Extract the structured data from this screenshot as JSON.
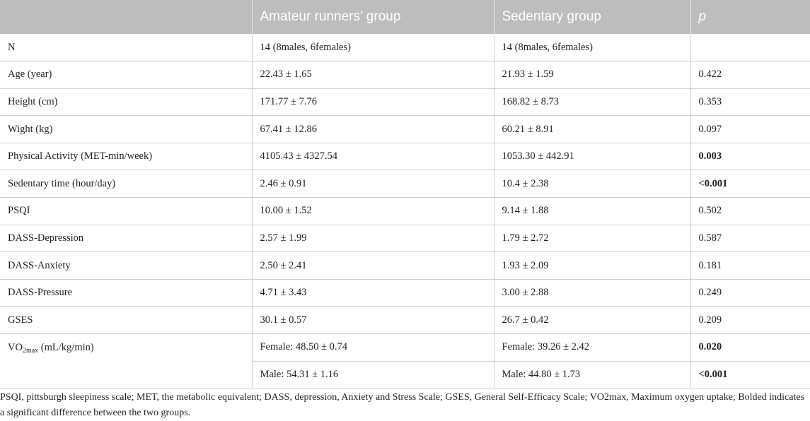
{
  "table": {
    "headers": [
      "",
      "Amateur runners’ group",
      "Sedentary group",
      "p"
    ],
    "rows": [
      {
        "label": "N",
        "runners": "14 (8males, 6females)",
        "sedentary": "14 (8males, 6females)",
        "p": ""
      },
      {
        "label": "Age (year)",
        "runners": "22.43 ± 1.65",
        "sedentary": "21.93 ± 1.59",
        "p": "0.422"
      },
      {
        "label": "Height (cm)",
        "runners": "171.77 ± 7.76",
        "sedentary": "168.82 ± 8.73",
        "p": "0.353"
      },
      {
        "label": "Wight (kg)",
        "runners": "67.41 ± 12.86",
        "sedentary": "60.21 ± 8.91",
        "p": "0.097"
      },
      {
        "label": "Physical Activity (MET-min/week)",
        "runners": "4105.43 ± 4327.54",
        "sedentary": "1053.30 ± 442.91",
        "p": "0.003"
      },
      {
        "label": "Sedentary time (hour/day)",
        "runners": "2.46 ± 0.91",
        "sedentary": "10.4 ± 2.38",
        "p": "<0.001"
      },
      {
        "label": "PSQI",
        "runners": "10.00 ± 1.52",
        "sedentary": "9.14 ± 1.88",
        "p": "0.502"
      },
      {
        "label": "DASS-Depression",
        "runners": "2.57 ± 1.99",
        "sedentary": "1.79 ± 2.72",
        "p": "0.587"
      },
      {
        "label": "DASS-Anxiety",
        "runners": "2.50 ± 2.41",
        "sedentary": "1.93 ± 2.09",
        "p": "0.181"
      },
      {
        "label": "DASS-Pressure",
        "runners": "4.71 ± 3.43",
        "sedentary": "3.00 ± 2.88",
        "p": "0.249"
      },
      {
        "label": "GSES",
        "runners": "30.1 ± 0.57",
        "sedentary": "26.7 ± 0.42",
        "p": "0.209"
      }
    ],
    "vo2": {
      "label_main": "VO",
      "label_sub": "2max",
      "label_unit": " (mL/kg/min)",
      "female": {
        "runners": "Female: 48.50 ± 0.74",
        "sedentary": "Female: 39.26 ± 2.42",
        "p": "0.020"
      },
      "male": {
        "runners": "Male: 54.31 ± 1.16",
        "sedentary": "Male: 44.80 ± 1.73",
        "p": "<0.001"
      }
    }
  },
  "footnote": "PSQI, pittsburgh sleepiness scale; MET, the metabolic equivalent; DASS, depression, Anxiety and Stress Scale; GSES, General Self-Efficacy Scale; VO2max, Maximum oxygen uptake; Bolded indicates a significant difference between the two groups.",
  "colors": {
    "header_bg": "#bebdbd",
    "header_text": "#ffffff",
    "border": "#cfcfcf"
  }
}
